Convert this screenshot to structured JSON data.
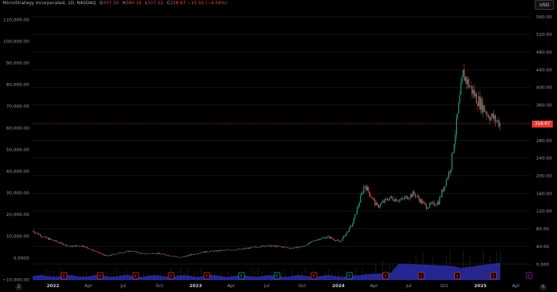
{
  "legend": {
    "symbol": "MicroStrategy Incorporated, 1D, NASDAQ",
    "open_label": "O",
    "open": "337.30",
    "high_label": "H",
    "high": "380.19",
    "low_label": "L",
    "low": "317.22",
    "close_label": "C",
    "close": "318.67",
    "change": "−15.50 (−4.58%)"
  },
  "currency_button": "USD",
  "current_price_tag": "318.67",
  "left_axis": {
    "ticks": [
      "110,000.00",
      "100,000.00",
      "90,000.00",
      "80,000.00",
      "70,000.00",
      "60,000.00",
      "50,000.00",
      "40,000.00",
      "30,000.00",
      "20,000.00",
      "10,000.00",
      "0.0000",
      "−10,000.00"
    ],
    "values": [
      110000,
      100000,
      90000,
      80000,
      70000,
      60000,
      50000,
      40000,
      30000,
      20000,
      10000,
      0,
      -10000
    ]
  },
  "right_axis": {
    "ticks": [
      "560.00",
      "520.00",
      "480.00",
      "440.00",
      "400.00",
      "360.00",
      "320.00",
      "280.00",
      "240.00",
      "200.00",
      "160.00",
      "120.00",
      "80.00",
      "40.00",
      "0.000"
    ],
    "values": [
      560,
      520,
      480,
      440,
      400,
      360,
      320,
      280,
      240,
      200,
      160,
      120,
      80,
      40,
      0
    ]
  },
  "time_axis": {
    "labels": [
      "2022",
      "Apr",
      "Jul",
      "Oct",
      "2023",
      "Apr",
      "Jul",
      "Oct",
      "2024",
      "Apr",
      "Jul",
      "Oct",
      "2025",
      "Apr"
    ],
    "bold": [
      true,
      false,
      false,
      false,
      true,
      false,
      false,
      false,
      true,
      false,
      false,
      false,
      true,
      false
    ]
  },
  "earnings_markers": [
    {
      "label": "E",
      "color": "#e53935"
    },
    {
      "label": "E",
      "color": "#e53935"
    },
    {
      "label": "E",
      "color": "#e53935"
    },
    {
      "label": "E",
      "color": "#e53935"
    },
    {
      "label": "E",
      "color": "#e53935"
    },
    {
      "label": "E",
      "color": "#26a69a"
    },
    {
      "label": "E",
      "color": "#26a69a"
    },
    {
      "label": "E",
      "color": "#e53935"
    },
    {
      "label": "E",
      "color": "#26a69a"
    },
    {
      "label": "E",
      "color": "#e53935"
    },
    {
      "label": "E",
      "color": "#e53935"
    },
    {
      "label": "E",
      "color": "#e53935"
    },
    {
      "label": "E",
      "color": "#e53935"
    },
    {
      "label": "E",
      "color": "#9c27b0"
    }
  ],
  "reset_button": "Z",
  "auto_button": "A",
  "colors": {
    "up": "#26a69a",
    "down": "#ef5350",
    "volume": "#2a2ab0",
    "price_line": "#e53935",
    "grid": "#161616",
    "axis_text": "#9598a1"
  },
  "chart_data": {
    "type": "candlestick",
    "title": "MicroStrategy Incorporated, 1D, NASDAQ",
    "ylim_right": [
      -20,
      580
    ],
    "series": [
      {
        "name": "MicroStrategy Incorporated",
        "x": [
          "2021-12",
          "2022-01",
          "2022-02",
          "2022-03",
          "2022-04",
          "2022-05",
          "2022-06",
          "2022-07",
          "2022-08",
          "2022-09",
          "2022-10",
          "2022-11",
          "2022-12",
          "2023-01",
          "2023-02",
          "2023-03",
          "2023-04",
          "2023-05",
          "2023-06",
          "2023-07",
          "2023-08",
          "2023-09",
          "2023-10",
          "2023-11",
          "2023-12",
          "2024-01",
          "2024-02",
          "2024-03",
          "2024-04",
          "2024-05",
          "2024-06",
          "2024-07",
          "2024-08",
          "2024-09",
          "2024-10",
          "2024-11",
          "2024-12",
          "2025-01",
          "2025-02"
        ],
        "y": [
          75,
          60,
          50,
          40,
          42,
          30,
          18,
          25,
          30,
          23,
          25,
          20,
          15,
          22,
          28,
          30,
          32,
          34,
          38,
          42,
          40,
          36,
          40,
          55,
          62,
          50,
          90,
          180,
          130,
          150,
          145,
          160,
          130,
          140,
          220,
          430,
          380,
          340,
          318.67
        ]
      }
    ],
    "current_price": 318.67
  }
}
